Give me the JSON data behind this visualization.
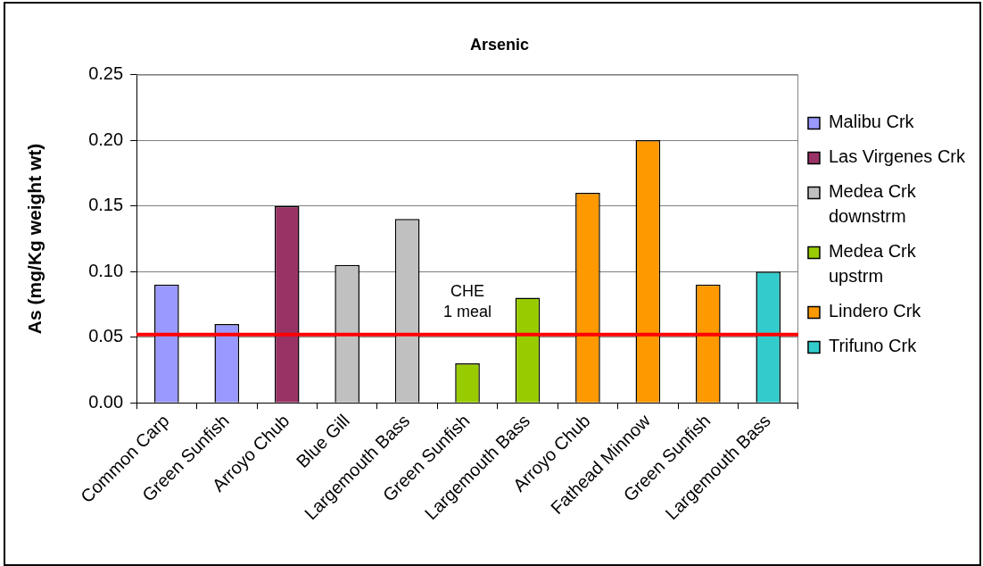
{
  "chart_data": {
    "type": "bar",
    "title": "Arsenic",
    "ylabel": "As (mg/Kg weight wt)",
    "categories": [
      "Common Carp",
      "Green Sunfish",
      "Arroyo Chub",
      "Blue Gill",
      "Largemouth Bass",
      "Green Sunfish",
      "Largemouth Bass",
      "Arroyo Chub",
      "Fathead Minnow",
      "Green Sunfish",
      "Largemouth Bass"
    ],
    "series": [
      {
        "name": "Malibu Crk",
        "color": "#9999ff",
        "values": [
          0.09,
          0.06,
          null,
          null,
          null,
          null,
          null,
          null,
          null,
          null,
          null
        ]
      },
      {
        "name": "Las Virgenes Crk",
        "color": "#993366",
        "values": [
          null,
          null,
          0.15,
          null,
          null,
          null,
          null,
          null,
          null,
          null,
          null
        ]
      },
      {
        "name": "Medea Crk downstrm",
        "color": "#c0c0c0",
        "values": [
          null,
          null,
          null,
          0.105,
          0.14,
          null,
          null,
          null,
          null,
          null,
          null
        ]
      },
      {
        "name": "Medea Crk upstrm",
        "color": "#99cc00",
        "values": [
          null,
          null,
          null,
          null,
          null,
          0.03,
          0.08,
          null,
          null,
          null,
          null
        ]
      },
      {
        "name": "Lindero Crk",
        "color": "#ff9900",
        "values": [
          null,
          null,
          null,
          null,
          null,
          null,
          null,
          0.16,
          0.2,
          0.09,
          null
        ]
      },
      {
        "name": "Trifuno Crk",
        "color": "#33cccc",
        "values": [
          null,
          null,
          null,
          null,
          null,
          null,
          null,
          null,
          null,
          null,
          0.1
        ]
      }
    ],
    "ylim": [
      0,
      0.25
    ],
    "yticks": [
      {
        "value": 0,
        "label": "0.00"
      },
      0.05,
      {
        "value": 0.1,
        "label": "0.10"
      },
      0.15,
      {
        "value": 0.2,
        "label": "0.20"
      },
      0.25
    ],
    "grid": "y",
    "legend": "right",
    "ref_lines": [
      {
        "axis": "y",
        "value": 0.052,
        "label": "CHE\n1 meal",
        "color": "#ff0000"
      }
    ]
  }
}
